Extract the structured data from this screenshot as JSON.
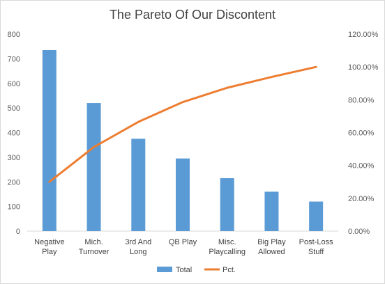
{
  "chart_data": {
    "type": "bar",
    "title": "The Pareto Of Our Discontent",
    "categories": [
      [
        "Negative",
        "Play"
      ],
      [
        "Mich.",
        "Turnover"
      ],
      [
        "3rd And",
        "Long"
      ],
      [
        "QB Play"
      ],
      [
        "Misc.",
        "Playcalling"
      ],
      [
        "Big Play",
        "Allowed"
      ],
      [
        "Post-Loss",
        "Stuff"
      ]
    ],
    "series": [
      {
        "name": "Total",
        "type": "bar",
        "axis": "left",
        "color": "#5b9bd5",
        "values": [
          735,
          520,
          375,
          295,
          215,
          160,
          120
        ]
      },
      {
        "name": "Pct.",
        "type": "line",
        "axis": "right",
        "color": "#ed7d31",
        "values": [
          30.0,
          51.2,
          66.5,
          78.6,
          87.3,
          93.9,
          100.0
        ]
      }
    ],
    "y_left": {
      "min": 0,
      "max": 800,
      "step": 100,
      "ticks": [
        "0",
        "100",
        "200",
        "300",
        "400",
        "500",
        "600",
        "700",
        "800"
      ]
    },
    "y_right": {
      "min": 0,
      "max": 120,
      "step": 20,
      "ticks": [
        "0.00%",
        "20.00%",
        "40.00%",
        "60.00%",
        "80.00%",
        "100.00%",
        "120.00%"
      ]
    },
    "grid": false,
    "legend": {
      "position": "bottom",
      "items": [
        "Total",
        "Pct."
      ]
    }
  }
}
